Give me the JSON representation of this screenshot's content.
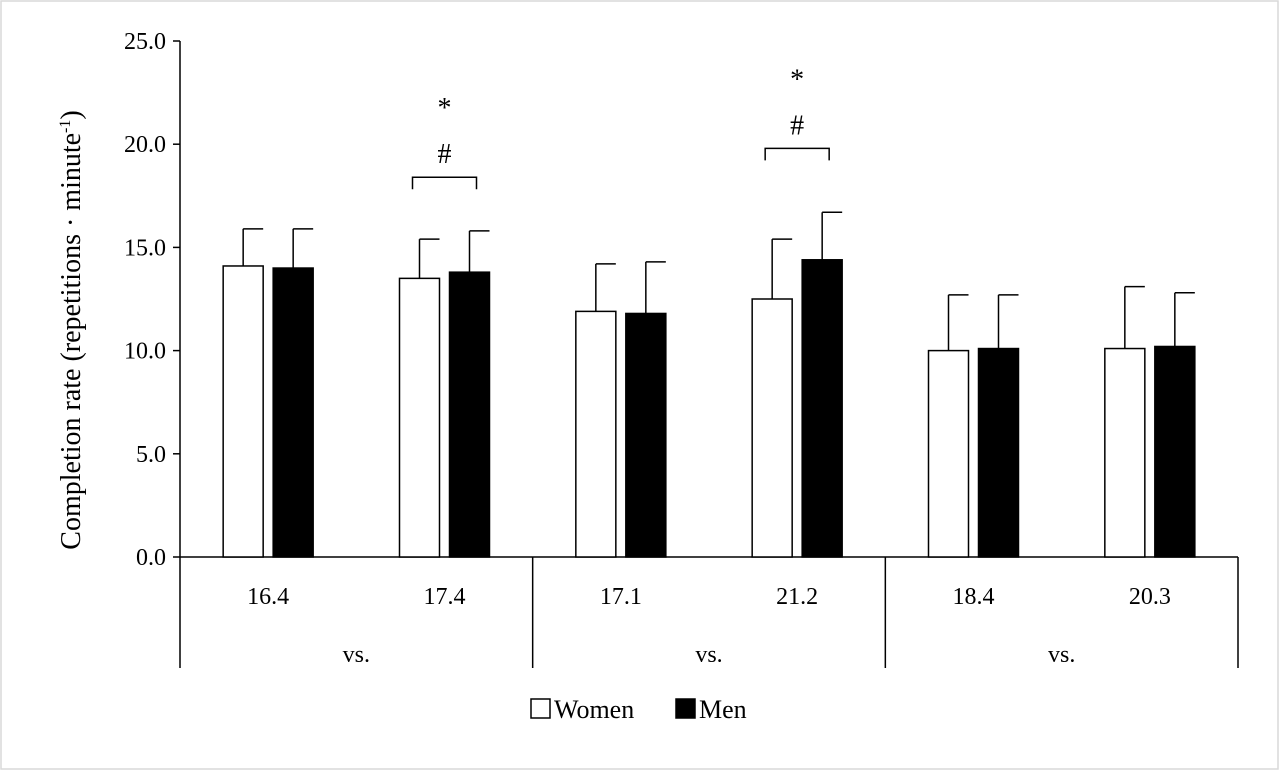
{
  "chart_data": {
    "type": "bar",
    "title": "",
    "xlabel": "",
    "ylabel": {
      "main": "Completion rate (repetitions · minute",
      "superscript": "-1",
      "close": ")"
    },
    "ylim": [
      0,
      25
    ],
    "yticks": [
      "0.0",
      "5.0",
      "10.0",
      "15.0",
      "20.0",
      "25.0"
    ],
    "categories": [
      "16.4",
      "17.4",
      "17.1",
      "21.2",
      "18.4",
      "20.3"
    ],
    "groups": [
      {
        "label": "vs.",
        "categories": [
          "16.4",
          "17.4"
        ]
      },
      {
        "label": "vs.",
        "categories": [
          "17.1",
          "21.2"
        ]
      },
      {
        "label": "vs.",
        "categories": [
          "18.4",
          "20.3"
        ]
      }
    ],
    "series": [
      {
        "name": "Women",
        "color": "#ffffff",
        "values": [
          14.1,
          13.5,
          11.9,
          12.5,
          10.0,
          10.1
        ],
        "errors": [
          1.8,
          1.9,
          2.3,
          2.9,
          2.7,
          3.0
        ]
      },
      {
        "name": "Men",
        "color": "#000000",
        "values": [
          14.0,
          13.8,
          11.8,
          14.4,
          10.1,
          10.2
        ],
        "errors": [
          1.9,
          2.0,
          2.5,
          2.3,
          2.6,
          2.6
        ]
      }
    ],
    "annotations": [
      {
        "category_index": 1,
        "bracket_y": 18.4,
        "symbols": [
          "*",
          "#"
        ]
      },
      {
        "category_index": 3,
        "bracket_y": 19.8,
        "symbols": [
          "*",
          "#"
        ]
      }
    ],
    "legend": {
      "position": "bottom",
      "entries": [
        "Women",
        "Men"
      ]
    },
    "grid": false
  }
}
